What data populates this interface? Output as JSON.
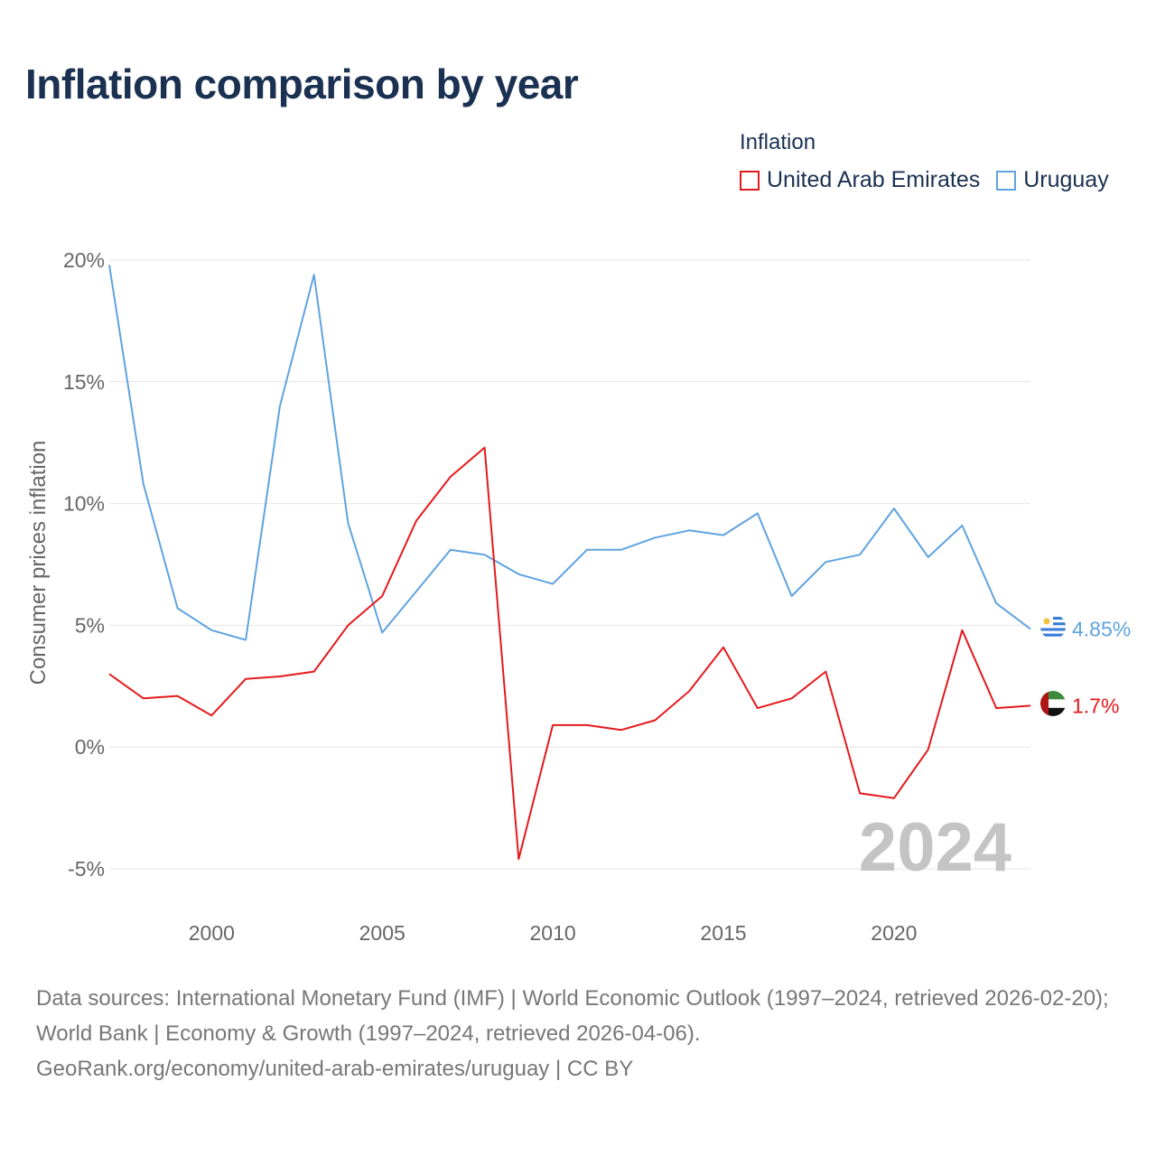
{
  "title": "Inflation comparison by year",
  "legend": {
    "title": "Inflation",
    "items": [
      {
        "name": "United Arab Emirates",
        "color": "#e41a1c"
      },
      {
        "name": "Uruguay",
        "color": "#5fa3e0"
      }
    ]
  },
  "chart_data": {
    "type": "line",
    "ylabel": "Consumer prices inflation",
    "xlabel": "",
    "xlim": [
      1997,
      2024
    ],
    "ylim": [
      -5,
      20
    ],
    "x_ticks": [
      2000,
      2005,
      2010,
      2015,
      2020
    ],
    "y_ticks": [
      20,
      15,
      10,
      5,
      0,
      -5
    ],
    "y_tick_labels": [
      "20%",
      "15%",
      "10%",
      "5%",
      "0%",
      "-5%"
    ],
    "year_watermark": "2024",
    "x": [
      1997,
      1998,
      1999,
      2000,
      2001,
      2002,
      2003,
      2004,
      2005,
      2006,
      2007,
      2008,
      2009,
      2010,
      2011,
      2012,
      2013,
      2014,
      2015,
      2016,
      2017,
      2018,
      2019,
      2020,
      2021,
      2022,
      2023,
      2024
    ],
    "series": [
      {
        "name": "United Arab Emirates",
        "color": "#e41a1c",
        "end_label": "1.7%",
        "flag": "uae",
        "values": [
          3.0,
          2.0,
          2.1,
          1.3,
          2.8,
          2.9,
          3.1,
          5.0,
          6.2,
          9.3,
          11.1,
          12.3,
          -4.6,
          0.9,
          0.9,
          0.7,
          1.1,
          2.3,
          4.1,
          1.6,
          2.0,
          3.1,
          -1.9,
          -2.1,
          -0.1,
          4.8,
          1.6,
          1.7
        ]
      },
      {
        "name": "Uruguay",
        "color": "#5fa3e0",
        "end_label": "4.85%",
        "flag": "uruguay",
        "values": [
          19.8,
          10.8,
          5.7,
          4.8,
          4.4,
          14.0,
          19.4,
          9.2,
          4.7,
          6.4,
          8.1,
          7.9,
          7.1,
          6.7,
          8.1,
          8.1,
          8.6,
          8.9,
          8.7,
          9.6,
          6.2,
          7.6,
          7.9,
          9.8,
          7.8,
          9.1,
          5.9,
          4.85
        ]
      }
    ]
  },
  "footer": {
    "line1": "Data sources: International Monetary Fund (IMF) | World Economic Outlook (1997–2024, retrieved 2026-02-20); World Bank | Economy & Growth (1997–2024, retrieved 2026-04-06).",
    "line2": "GeoRank.org/economy/united-arab-emirates/uruguay | CC BY"
  }
}
